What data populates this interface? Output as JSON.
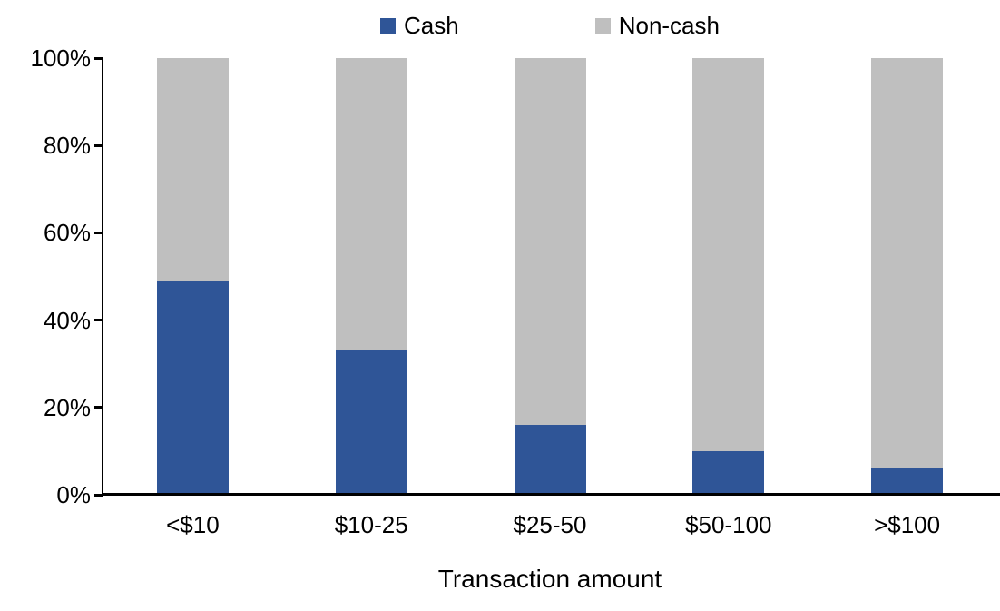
{
  "chart_data": {
    "type": "bar",
    "variant": "stacked-100-percent",
    "title": "",
    "xlabel": "Transaction amount",
    "ylabel": "",
    "categories": [
      "<$10",
      "$10-25",
      "$25-50",
      "$50-100",
      ">$100"
    ],
    "series": [
      {
        "name": "Cash",
        "color": "#2F5597",
        "values": [
          49,
          33,
          16,
          10,
          6
        ]
      },
      {
        "name": "Non-cash",
        "color": "#BFBFBF",
        "values": [
          51,
          67,
          84,
          90,
          94
        ]
      }
    ],
    "ylim": [
      0,
      100
    ],
    "y_tick_labels_top_down": [
      "100%",
      "80%",
      "60%",
      "40%",
      "20%",
      "0%"
    ],
    "grid": false,
    "legend_position": "top-center",
    "axis_color": "#000000",
    "text_color": "#000000",
    "background_color": "#FFFFFF"
  }
}
